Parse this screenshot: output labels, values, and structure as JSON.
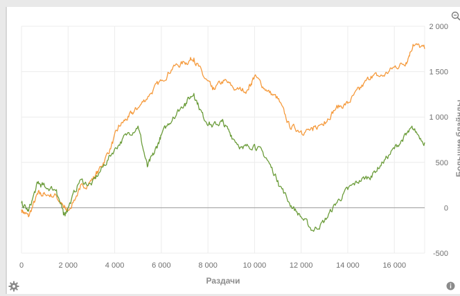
{
  "chart_data": {
    "type": "line",
    "xlabel": "Раздачи",
    "ylabel": "Большие блайнды",
    "xlim": [
      0,
      17300
    ],
    "ylim": [
      -500,
      2000
    ],
    "x_ticks": [
      "0",
      "2 000",
      "4 000",
      "6 000",
      "8 000",
      "10 000",
      "12 000",
      "14 000",
      "16 000"
    ],
    "x_tick_values": [
      0,
      2000,
      4000,
      6000,
      8000,
      10000,
      12000,
      14000,
      16000
    ],
    "y_ticks": [
      "2 000",
      "1 500",
      "1 000",
      "500",
      "0",
      "-500"
    ],
    "y_tick_values": [
      2000,
      1500,
      1000,
      500,
      0,
      -500
    ],
    "grid": true,
    "series": [
      {
        "color": "#f59a3c",
        "x": [
          0,
          300,
          700,
          1000,
          1500,
          1800,
          2000,
          2500,
          3000,
          3300,
          3800,
          4200,
          4600,
          5000,
          5500,
          6000,
          6500,
          7000,
          7400,
          7800,
          8200,
          8700,
          9200,
          9700,
          10000,
          10500,
          11000,
          11500,
          12000,
          12500,
          13000,
          13500,
          14000,
          14500,
          15000,
          15500,
          16000,
          16500,
          16800,
          17300
        ],
        "y": [
          -20,
          -100,
          150,
          150,
          130,
          0,
          -30,
          200,
          300,
          400,
          650,
          900,
          1000,
          1100,
          1250,
          1400,
          1550,
          1600,
          1650,
          1450,
          1300,
          1400,
          1300,
          1300,
          1450,
          1300,
          1200,
          900,
          850,
          850,
          950,
          1100,
          1150,
          1300,
          1450,
          1450,
          1550,
          1600,
          1800,
          1750
        ]
      },
      {
        "color": "#6b9c3a",
        "x": [
          0,
          300,
          700,
          1000,
          1500,
          1800,
          2000,
          2500,
          3000,
          3500,
          4000,
          4500,
          5000,
          5400,
          5700,
          6000,
          6500,
          7000,
          7400,
          7800,
          8200,
          8600,
          9000,
          9500,
          10000,
          10500,
          11000,
          11500,
          12000,
          12500,
          13000,
          13500,
          14000,
          14500,
          15000,
          15500,
          16000,
          16500,
          16800,
          17300
        ],
        "y": [
          50,
          -40,
          270,
          230,
          200,
          -80,
          0,
          300,
          250,
          450,
          650,
          800,
          900,
          450,
          600,
          800,
          1000,
          1150,
          1260,
          1000,
          900,
          950,
          800,
          650,
          700,
          550,
          300,
          50,
          -100,
          -250,
          -150,
          50,
          200,
          300,
          350,
          500,
          650,
          800,
          870,
          720
        ]
      }
    ]
  },
  "ui": {
    "zoom_icon": "zoom-icon",
    "settings_icon": "gear-icon",
    "info_icon": "info-icon"
  }
}
